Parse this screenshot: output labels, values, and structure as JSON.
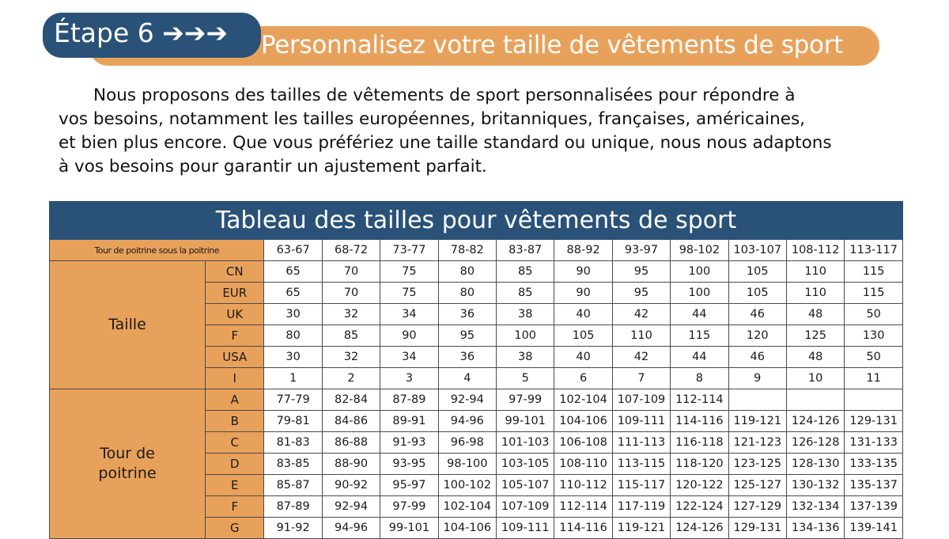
{
  "step": {
    "label": "Étape 6 ➔➔➔"
  },
  "headline": "Personnalisez votre taille de vêtements de sport",
  "intro": [
    "Nous proposons des tailles de vêtements de sport personnalisées pour répondre à",
    "vos besoins, notamment les tailles européennes, britanniques, françaises, américaines,",
    "et bien plus encore. Que vous préfériez une taille standard ou unique, nous nous adaptons",
    "à vos besoins pour garantir un ajustement parfait."
  ],
  "colors": {
    "navy": "#2a5278",
    "orange": "#e8a15b"
  },
  "table": {
    "title": "Tableau des tailles pour vêtements de sport",
    "header_label": "Tour de poitrine sous la poitrine",
    "header_values": [
      "63-67",
      "68-72",
      "73-77",
      "78-82",
      "83-87",
      "88-92",
      "93-97",
      "98-102",
      "103-107",
      "108-112",
      "113-117"
    ],
    "taille_label": "Taille",
    "taille_rows": [
      {
        "label": "CN",
        "values": [
          "65",
          "70",
          "75",
          "80",
          "85",
          "90",
          "95",
          "100",
          "105",
          "110",
          "115"
        ]
      },
      {
        "label": "EUR",
        "values": [
          "65",
          "70",
          "75",
          "80",
          "85",
          "90",
          "95",
          "100",
          "105",
          "110",
          "115"
        ]
      },
      {
        "label": "UK",
        "values": [
          "30",
          "32",
          "34",
          "36",
          "38",
          "40",
          "42",
          "44",
          "46",
          "48",
          "50"
        ]
      },
      {
        "label": "F",
        "values": [
          "80",
          "85",
          "90",
          "95",
          "100",
          "105",
          "110",
          "115",
          "120",
          "125",
          "130"
        ]
      },
      {
        "label": "USA",
        "values": [
          "30",
          "32",
          "34",
          "36",
          "38",
          "40",
          "42",
          "44",
          "46",
          "48",
          "50"
        ]
      },
      {
        "label": "I",
        "values": [
          "1",
          "2",
          "3",
          "4",
          "5",
          "6",
          "7",
          "8",
          "9",
          "10",
          "11"
        ]
      }
    ],
    "poitrine_label_1": "Tour de",
    "poitrine_label_2": "poitrine",
    "poitrine_rows": [
      {
        "label": "A",
        "values": [
          "77-79",
          "82-84",
          "87-89",
          "92-94",
          "97-99",
          "102-104",
          "107-109",
          "112-114",
          "",
          "",
          ""
        ]
      },
      {
        "label": "B",
        "values": [
          "79-81",
          "84-86",
          "89-91",
          "94-96",
          "99-101",
          "104-106",
          "109-111",
          "114-116",
          "119-121",
          "124-126",
          "129-131"
        ]
      },
      {
        "label": "C",
        "values": [
          "81-83",
          "86-88",
          "91-93",
          "96-98",
          "101-103",
          "106-108",
          "111-113",
          "116-118",
          "121-123",
          "126-128",
          "131-133"
        ]
      },
      {
        "label": "D",
        "values": [
          "83-85",
          "88-90",
          "93-95",
          "98-100",
          "103-105",
          "108-110",
          "113-115",
          "118-120",
          "123-125",
          "128-130",
          "133-135"
        ]
      },
      {
        "label": "E",
        "values": [
          "85-87",
          "90-92",
          "95-97",
          "100-102",
          "105-107",
          "110-112",
          "115-117",
          "120-122",
          "125-127",
          "130-132",
          "135-137"
        ]
      },
      {
        "label": "F",
        "values": [
          "87-89",
          "92-94",
          "97-99",
          "102-104",
          "107-109",
          "112-114",
          "117-119",
          "122-124",
          "127-129",
          "132-134",
          "137-139"
        ]
      },
      {
        "label": "G",
        "values": [
          "91-92",
          "94-96",
          "99-101",
          "104-106",
          "109-111",
          "114-116",
          "119-121",
          "124-126",
          "129-131",
          "134-136",
          "139-141"
        ]
      }
    ]
  }
}
